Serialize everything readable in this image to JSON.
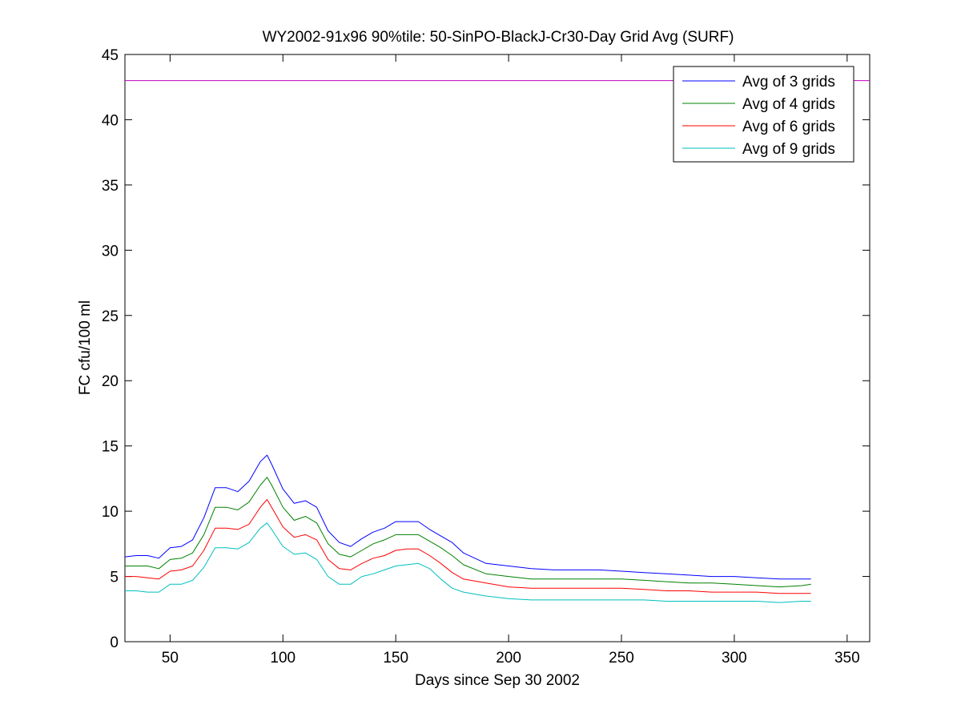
{
  "chart_data": {
    "type": "line",
    "title": "WY2002-91x96 90%tile: 50-SinPO-BlackJ-Cr30-Day Grid Avg (SURF)",
    "xlabel": "Days since Sep 30 2002",
    "ylabel": "FC cfu/100 ml",
    "xlim": [
      30,
      360
    ],
    "ylim": [
      0,
      45
    ],
    "xticks": [
      50,
      100,
      150,
      200,
      250,
      300,
      350
    ],
    "yticks": [
      0,
      5,
      10,
      15,
      20,
      25,
      30,
      35,
      40,
      45
    ],
    "grid": false,
    "legend_position": "top-right",
    "reference_line": {
      "y": 43,
      "color": "#bf00bf"
    },
    "x": [
      30,
      35,
      40,
      45,
      50,
      55,
      60,
      65,
      70,
      75,
      80,
      85,
      90,
      93,
      95,
      100,
      105,
      110,
      115,
      120,
      125,
      130,
      135,
      140,
      145,
      150,
      155,
      160,
      165,
      170,
      175,
      180,
      190,
      200,
      210,
      220,
      230,
      240,
      250,
      260,
      270,
      280,
      290,
      300,
      310,
      320,
      330,
      334
    ],
    "series": [
      {
        "name": "Avg of 3 grids",
        "color": "#0000ff",
        "values": [
          6.5,
          6.6,
          6.6,
          6.4,
          7.2,
          7.3,
          7.8,
          9.5,
          11.8,
          11.8,
          11.5,
          12.3,
          13.8,
          14.3,
          13.6,
          11.7,
          10.6,
          10.8,
          10.3,
          8.5,
          7.6,
          7.3,
          7.9,
          8.4,
          8.7,
          9.2,
          9.2,
          9.2,
          8.6,
          8.1,
          7.6,
          6.8,
          6.0,
          5.8,
          5.6,
          5.5,
          5.5,
          5.5,
          5.4,
          5.3,
          5.2,
          5.1,
          5.0,
          5.0,
          4.9,
          4.8,
          4.8,
          4.8
        ]
      },
      {
        "name": "Avg of 4 grids",
        "color": "#008000",
        "values": [
          5.8,
          5.8,
          5.8,
          5.6,
          6.3,
          6.4,
          6.8,
          8.2,
          10.3,
          10.3,
          10.1,
          10.7,
          12.0,
          12.6,
          12.0,
          10.3,
          9.3,
          9.6,
          9.1,
          7.5,
          6.7,
          6.5,
          7.0,
          7.5,
          7.8,
          8.2,
          8.2,
          8.2,
          7.7,
          7.2,
          6.6,
          5.9,
          5.2,
          5.0,
          4.8,
          4.8,
          4.8,
          4.8,
          4.8,
          4.7,
          4.6,
          4.5,
          4.5,
          4.4,
          4.3,
          4.2,
          4.3,
          4.4
        ]
      },
      {
        "name": "Avg of 6 grids",
        "color": "#ff0000",
        "values": [
          5.0,
          5.0,
          4.9,
          4.8,
          5.4,
          5.5,
          5.8,
          7.0,
          8.7,
          8.7,
          8.6,
          9.0,
          10.3,
          10.9,
          10.3,
          8.8,
          8.0,
          8.2,
          7.8,
          6.3,
          5.6,
          5.5,
          6.0,
          6.4,
          6.6,
          7.0,
          7.1,
          7.1,
          6.6,
          6.0,
          5.3,
          4.8,
          4.5,
          4.2,
          4.1,
          4.1,
          4.1,
          4.1,
          4.1,
          4.0,
          3.9,
          3.9,
          3.8,
          3.8,
          3.8,
          3.7,
          3.7,
          3.7
        ]
      },
      {
        "name": "Avg of 9 grids",
        "color": "#00bfbf",
        "values": [
          3.9,
          3.9,
          3.8,
          3.8,
          4.4,
          4.4,
          4.7,
          5.7,
          7.2,
          7.2,
          7.1,
          7.6,
          8.7,
          9.1,
          8.6,
          7.3,
          6.7,
          6.8,
          6.3,
          5.0,
          4.4,
          4.4,
          5.0,
          5.2,
          5.5,
          5.8,
          5.9,
          6.0,
          5.6,
          4.8,
          4.1,
          3.8,
          3.5,
          3.3,
          3.2,
          3.2,
          3.2,
          3.2,
          3.2,
          3.2,
          3.1,
          3.1,
          3.1,
          3.1,
          3.1,
          3.0,
          3.1,
          3.1
        ]
      }
    ]
  }
}
